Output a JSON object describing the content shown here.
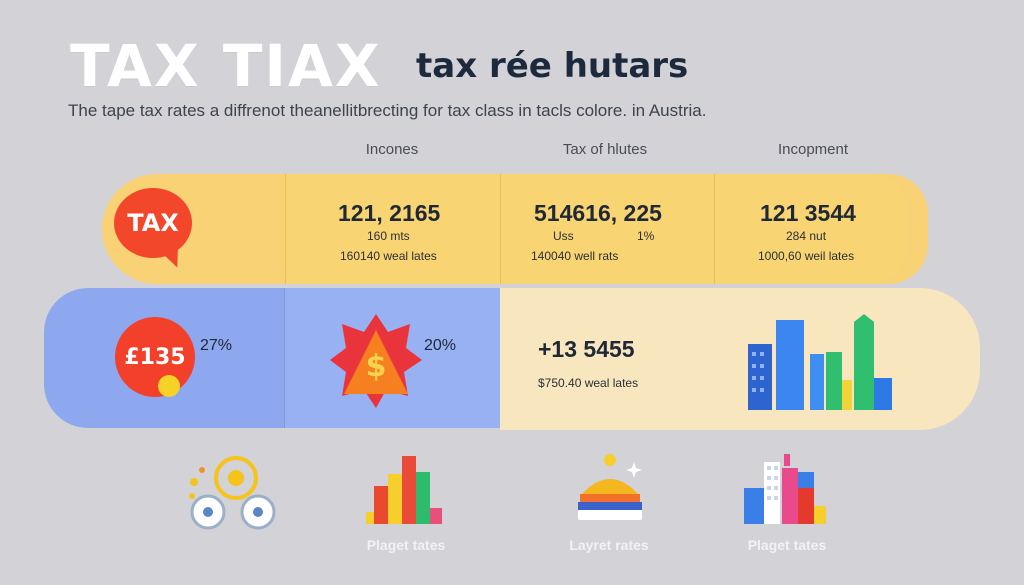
{
  "header": {
    "title_big": "TAX TIAX",
    "title_small": "tax rée hutars",
    "subtitle": "The tape tax rates a diffrenot theanellitbrecting for tax class in tacls colore. in Austria."
  },
  "columns": {
    "col1": "Incones",
    "col2": "Tax of hlutes",
    "col3": "Incopment"
  },
  "row1": {
    "badge": "TAX",
    "cells": [
      {
        "big": "121, 2165",
        "mid": "160 mts",
        "mid_right": "",
        "small": "160140 weal lates"
      },
      {
        "big": "514616, 225",
        "mid": "Uss",
        "mid_right": "1%",
        "small": "140040 well rats"
      },
      {
        "big": "121 3544",
        "mid": "284 nut",
        "mid_right": "",
        "small": "1000,60 weil lates"
      }
    ]
  },
  "row2": {
    "badge": "£135",
    "badge_pct": "27%",
    "burst_symbol": "$",
    "burst_pct": "20%",
    "value": "+13 5455",
    "value_caption": "$750.40 weal lates"
  },
  "bottom": {
    "labels": [
      "Plaget tates",
      "Layret rates",
      "Plaget tates"
    ]
  },
  "colors": {
    "background": "#d3d2d6",
    "yellow": "#f8d275",
    "blue": "#8ea8ef",
    "cream": "#f8e6bf",
    "red": "#f2472a"
  }
}
